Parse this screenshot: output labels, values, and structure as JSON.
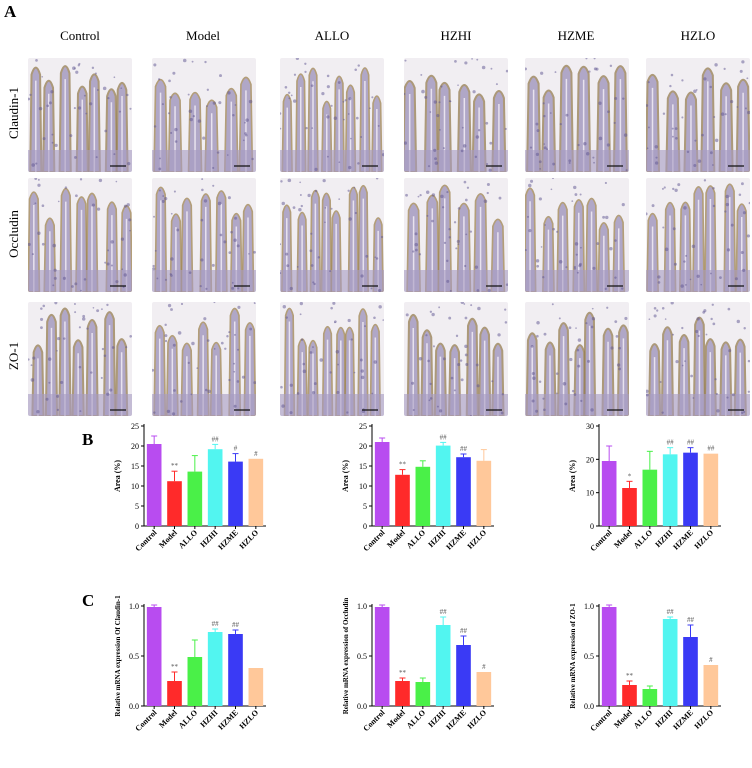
{
  "panels": {
    "a": "A",
    "b": "B",
    "c": "C"
  },
  "micrograph": {
    "columns": [
      "Control",
      "Model",
      "ALLO",
      "HZHI",
      "HZME",
      "HZLO"
    ],
    "rows": [
      "Claudin-1",
      "Occludin",
      "ZO-1"
    ]
  },
  "colors": {
    "Control": "#b84cf0",
    "Model": "#ff2a2a",
    "ALLO": "#4af048",
    "HZHI": "#52f5f0",
    "HZME": "#3a3af5",
    "HZLO": "#ffc89a",
    "annotation": "#555555"
  },
  "chart_data": [
    {
      "panel": "B",
      "type": "bar",
      "ylabel": "Area (%)",
      "ylim": [
        0,
        25
      ],
      "yticks": [
        0,
        5,
        10,
        15,
        20,
        25
      ],
      "categories": [
        "Control",
        "Model",
        "ALLO",
        "HZHI",
        "HZME",
        "HZLO"
      ],
      "values": [
        20.5,
        11.2,
        13.6,
        19.2,
        16.1,
        16.8
      ],
      "errors": [
        2.0,
        2.5,
        4.0,
        1.2,
        2.0,
        0.0
      ],
      "annotations": [
        "",
        "**",
        "",
        "##",
        "#",
        "#"
      ]
    },
    {
      "panel": "B",
      "type": "bar",
      "ylabel": "Area (%)",
      "ylim": [
        0,
        25
      ],
      "yticks": [
        0,
        5,
        10,
        15,
        20,
        25
      ],
      "categories": [
        "Control",
        "Model",
        "ALLO",
        "HZHI",
        "HZME",
        "HZLO"
      ],
      "values": [
        21.0,
        12.8,
        14.8,
        20.1,
        17.2,
        16.3
      ],
      "errors": [
        1.0,
        1.3,
        1.5,
        0.8,
        0.8,
        2.8
      ],
      "annotations": [
        "",
        "**",
        "",
        "##",
        "##",
        ""
      ]
    },
    {
      "panel": "B",
      "type": "bar",
      "ylabel": "Area (%)",
      "ylim": [
        0,
        30
      ],
      "yticks": [
        0,
        10,
        20,
        30
      ],
      "categories": [
        "Control",
        "Model",
        "ALLO",
        "HZHI",
        "HZME",
        "HZLO"
      ],
      "values": [
        19.5,
        11.4,
        16.9,
        21.5,
        22.0,
        21.7
      ],
      "errors": [
        4.5,
        2.0,
        5.5,
        2.0,
        1.5,
        0.0
      ],
      "annotations": [
        "",
        "*",
        "",
        "##",
        "##",
        "##"
      ]
    },
    {
      "panel": "C",
      "type": "bar",
      "ylabel": "Relative mRNA expression Of  Claudin-1",
      "ylim": [
        0,
        1.0
      ],
      "yticks": [
        0.0,
        0.5,
        1.0
      ],
      "categories": [
        "Control",
        "Model",
        "ALLO",
        "HZHI",
        "HZME",
        "HZLO"
      ],
      "values": [
        0.99,
        0.25,
        0.49,
        0.74,
        0.72,
        0.38
      ],
      "errors": [
        0.02,
        0.09,
        0.17,
        0.03,
        0.04,
        0.0
      ],
      "annotations": [
        "",
        "**",
        "",
        "##",
        "##",
        ""
      ]
    },
    {
      "panel": "C",
      "type": "bar",
      "ylabel": "Relative mRNA expression of Occludin",
      "ylim": [
        0,
        1.0
      ],
      "yticks": [
        0.0,
        0.5,
        1.0
      ],
      "categories": [
        "Control",
        "Model",
        "ALLO",
        "HZHI",
        "HZME",
        "HZLO"
      ],
      "values": [
        0.99,
        0.25,
        0.24,
        0.81,
        0.61,
        0.34
      ],
      "errors": [
        0.02,
        0.03,
        0.04,
        0.08,
        0.09,
        0.0
      ],
      "annotations": [
        "",
        "**",
        "",
        "##",
        "##",
        "#"
      ]
    },
    {
      "panel": "C",
      "type": "bar",
      "ylabel": "Relative mRNA expression of ZO-1",
      "ylim": [
        0,
        1.0
      ],
      "yticks": [
        0.0,
        0.5,
        1.0
      ],
      "categories": [
        "Control",
        "Model",
        "ALLO",
        "HZHI",
        "HZME",
        "HZLO"
      ],
      "values": [
        0.99,
        0.21,
        0.17,
        0.87,
        0.69,
        0.41
      ],
      "errors": [
        0.02,
        0.04,
        0.03,
        0.02,
        0.12,
        0.0
      ],
      "annotations": [
        "",
        "**",
        "",
        "##",
        "##",
        "#"
      ]
    }
  ]
}
